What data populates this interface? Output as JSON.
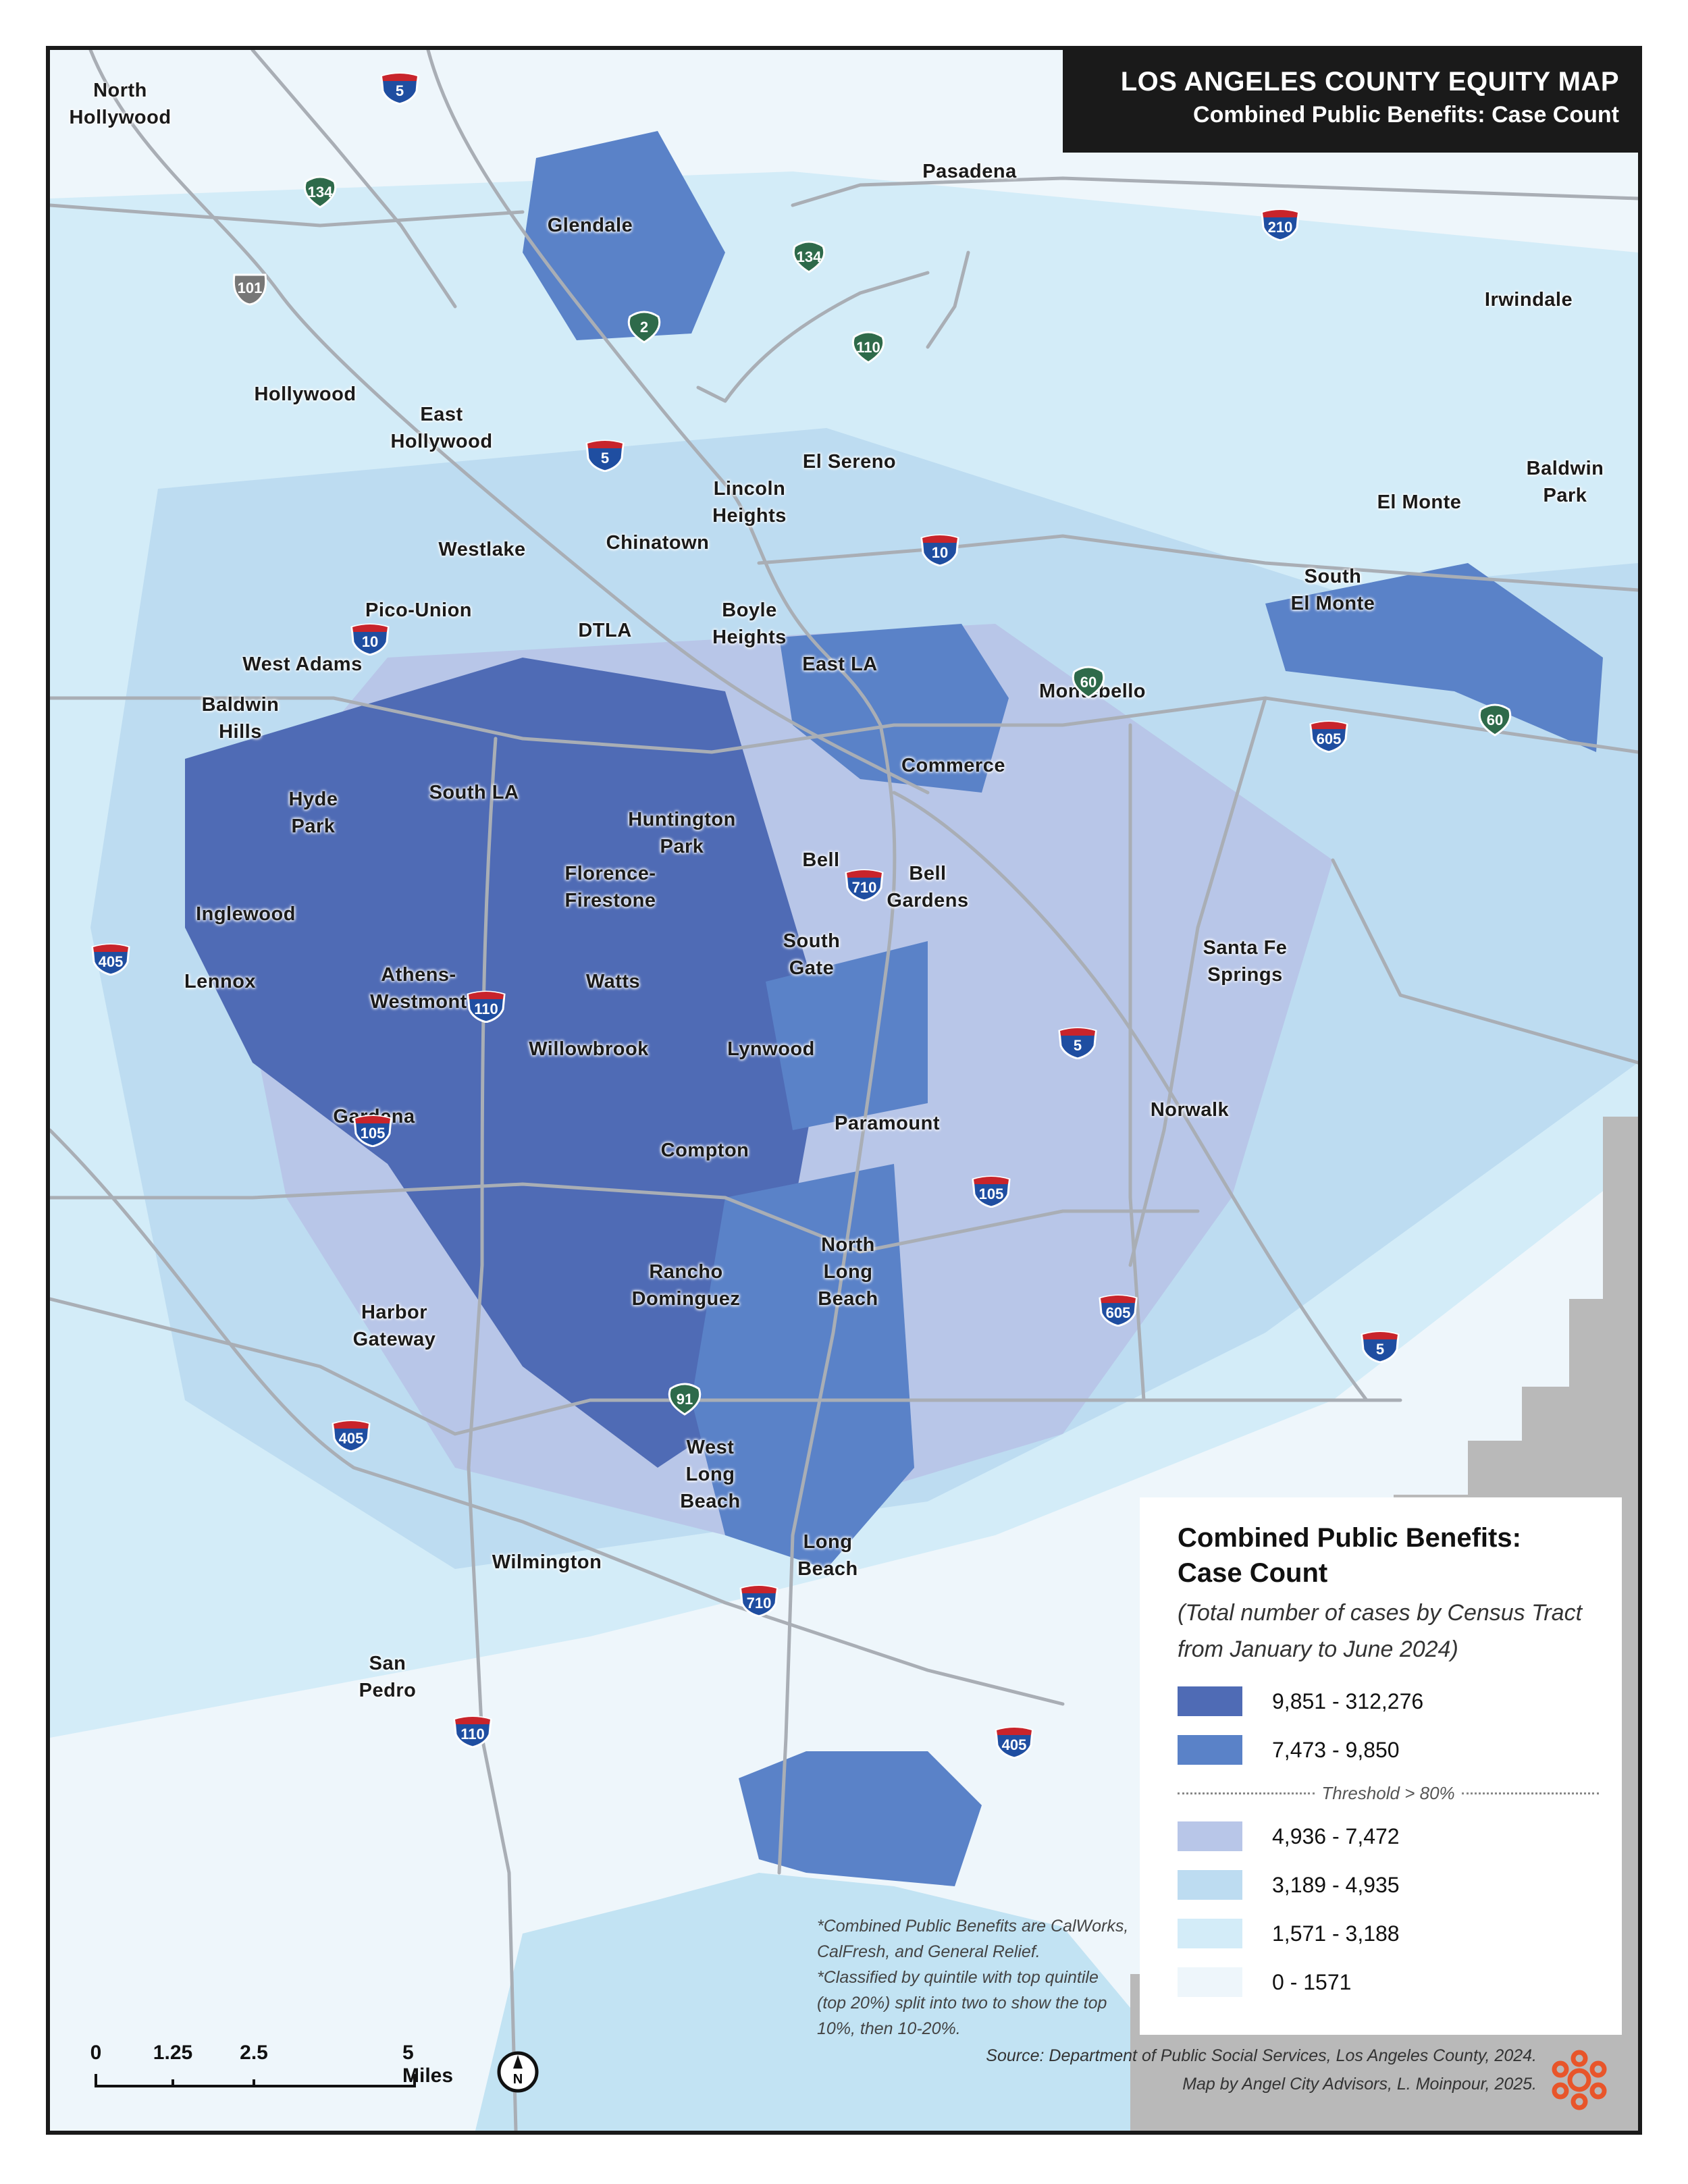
{
  "title": {
    "line1": "LOS ANGELES COUNTY EQUITY MAP",
    "line2": "Combined Public Benefits: Case Count"
  },
  "places": [
    {
      "id": "north-hollywood",
      "text": "North\nHollywood"
    },
    {
      "id": "pasadena",
      "text": "Pasadena"
    },
    {
      "id": "glendale",
      "text": "Glendale"
    },
    {
      "id": "irwindale",
      "text": "Irwindale"
    },
    {
      "id": "hollywood",
      "text": "Hollywood"
    },
    {
      "id": "east-hollywood",
      "text": "East\nHollywood"
    },
    {
      "id": "el-sereno",
      "text": "El Sereno"
    },
    {
      "id": "el-monte",
      "text": "El Monte"
    },
    {
      "id": "baldwin-park",
      "text": "Baldwin\nPark"
    },
    {
      "id": "lincoln-heights",
      "text": "Lincoln\nHeights"
    },
    {
      "id": "chinatown",
      "text": "Chinatown"
    },
    {
      "id": "westlake",
      "text": "Westlake"
    },
    {
      "id": "south-el-monte",
      "text": "South\nEl Monte"
    },
    {
      "id": "boyle-heights",
      "text": "Boyle\nHeights"
    },
    {
      "id": "pico-union",
      "text": "Pico-Union"
    },
    {
      "id": "dtla",
      "text": "DTLA"
    },
    {
      "id": "west-adams",
      "text": "West Adams"
    },
    {
      "id": "east-la",
      "text": "East LA"
    },
    {
      "id": "montebello",
      "text": "Montebello"
    },
    {
      "id": "baldwin-hills",
      "text": "Baldwin\nHills"
    },
    {
      "id": "commerce",
      "text": "Commerce"
    },
    {
      "id": "south-la",
      "text": "South LA"
    },
    {
      "id": "hyde-park",
      "text": "Hyde\nPark"
    },
    {
      "id": "huntington-park",
      "text": "Huntington\nPark"
    },
    {
      "id": "bell",
      "text": "Bell"
    },
    {
      "id": "bell-gardens",
      "text": "Bell\nGardens"
    },
    {
      "id": "florence-firestone",
      "text": "Florence-\nFirestone"
    },
    {
      "id": "inglewood",
      "text": "Inglewood"
    },
    {
      "id": "south-gate",
      "text": "South\nGate"
    },
    {
      "id": "santa-fe-springs",
      "text": "Santa Fe\nSprings"
    },
    {
      "id": "lennox",
      "text": "Lennox"
    },
    {
      "id": "athens-westmont",
      "text": "Athens-\nWestmont"
    },
    {
      "id": "watts",
      "text": "Watts"
    },
    {
      "id": "willowbrook",
      "text": "Willowbrook"
    },
    {
      "id": "lynwood",
      "text": "Lynwood"
    },
    {
      "id": "gardena",
      "text": "Gardena"
    },
    {
      "id": "norwalk",
      "text": "Norwalk"
    },
    {
      "id": "paramount",
      "text": "Paramount"
    },
    {
      "id": "compton",
      "text": "Compton"
    },
    {
      "id": "north-long-beach",
      "text": "North\nLong\nBeach"
    },
    {
      "id": "rancho-dominguez",
      "text": "Rancho\nDominguez"
    },
    {
      "id": "harbor-gateway",
      "text": "Harbor\nGateway"
    },
    {
      "id": "west-long-beach",
      "text": "West\nLong\nBeach"
    },
    {
      "id": "long-beach",
      "text": "Long\nBeach"
    },
    {
      "id": "wilmington",
      "text": "Wilmington"
    },
    {
      "id": "san-pedro",
      "text": "San\nPedro"
    }
  ],
  "shields": [
    {
      "id": "i5-north",
      "type": "interstate",
      "num": "5"
    },
    {
      "id": "sr134-west",
      "type": "state",
      "num": "134"
    },
    {
      "id": "sr134-east",
      "type": "state",
      "num": "134"
    },
    {
      "id": "i210",
      "type": "interstate",
      "num": "210"
    },
    {
      "id": "us101",
      "type": "us",
      "num": "101"
    },
    {
      "id": "sr2",
      "type": "state",
      "num": "2"
    },
    {
      "id": "sr110-north",
      "type": "state",
      "num": "110"
    },
    {
      "id": "i5-central",
      "type": "interstate",
      "num": "5"
    },
    {
      "id": "i10-east",
      "type": "interstate",
      "num": "10"
    },
    {
      "id": "i10-west",
      "type": "interstate",
      "num": "10"
    },
    {
      "id": "sr60-west",
      "type": "state",
      "num": "60"
    },
    {
      "id": "sr60-east",
      "type": "state",
      "num": "60"
    },
    {
      "id": "i605-north",
      "type": "interstate",
      "num": "605"
    },
    {
      "id": "i710-north",
      "type": "interstate",
      "num": "710"
    },
    {
      "id": "i405-west",
      "type": "interstate",
      "num": "405"
    },
    {
      "id": "i110-central",
      "type": "interstate",
      "num": "110"
    },
    {
      "id": "i5-south",
      "type": "interstate",
      "num": "5"
    },
    {
      "id": "i105-west",
      "type": "interstate",
      "num": "105"
    },
    {
      "id": "i105-east",
      "type": "interstate",
      "num": "105"
    },
    {
      "id": "i605-south",
      "type": "interstate",
      "num": "605"
    },
    {
      "id": "i5-southeast",
      "type": "interstate",
      "num": "5"
    },
    {
      "id": "sr91",
      "type": "state",
      "num": "91"
    },
    {
      "id": "i405-south",
      "type": "interstate",
      "num": "405"
    },
    {
      "id": "i710-south",
      "type": "interstate",
      "num": "710"
    },
    {
      "id": "i110-south",
      "type": "interstate",
      "num": "110"
    },
    {
      "id": "i405-east",
      "type": "interstate",
      "num": "405"
    }
  ],
  "legend": {
    "heading_line1": "Combined Public Benefits:",
    "heading_line2": "Case Count",
    "subtitle_line1": "(Total number of cases by Census Tract",
    "subtitle_line2": "from January to June 2024)",
    "threshold": "Threshold > 80%",
    "classes": [
      {
        "label": "9,851 - 312,276",
        "color": "#4f6bb5"
      },
      {
        "label": "7,473 - 9,850",
        "color": "#5a82c8"
      },
      {
        "label": "4,936 - 7,472",
        "color": "#b8c6e8"
      },
      {
        "label": "3,189 - 4,935",
        "color": "#bddcf1"
      },
      {
        "label": "1,571 - 3,188",
        "color": "#d3ecf8"
      },
      {
        "label": "0 - 1571",
        "color": "#eef6fb"
      }
    ]
  },
  "notes": [
    "*Combined Public Benefits are CalWorks,",
    "CalFresh, and General Relief.",
    "*Classified by quintile with top quintile",
    "(top 20%) split into two to show the top",
    "10%, then 10-20%."
  ],
  "source": {
    "line1": "Source: Department of Public Social Services, Los Angeles County, 2024.",
    "line2": "Map by Angel City Advisors, L. Moinpour, 2025."
  },
  "scale_bar": {
    "ticks": [
      "0",
      "1.25",
      "2.5",
      "5 Miles"
    ]
  },
  "north_arrow": "N",
  "colors": {
    "highest": "#4f6bb5",
    "high": "#5a82c8",
    "mid": "#b8c6e8",
    "low": "#bddcf1",
    "lower": "#d3ecf8",
    "lowest": "#eef6fb",
    "water": "#c2e3f3",
    "outside": "#b9b9b9",
    "interstate_blue": "#1f4ea1",
    "interstate_red": "#c8242b",
    "state_green": "#2e6a4a",
    "us_gray": "#777777",
    "logo": "#e8552a"
  }
}
